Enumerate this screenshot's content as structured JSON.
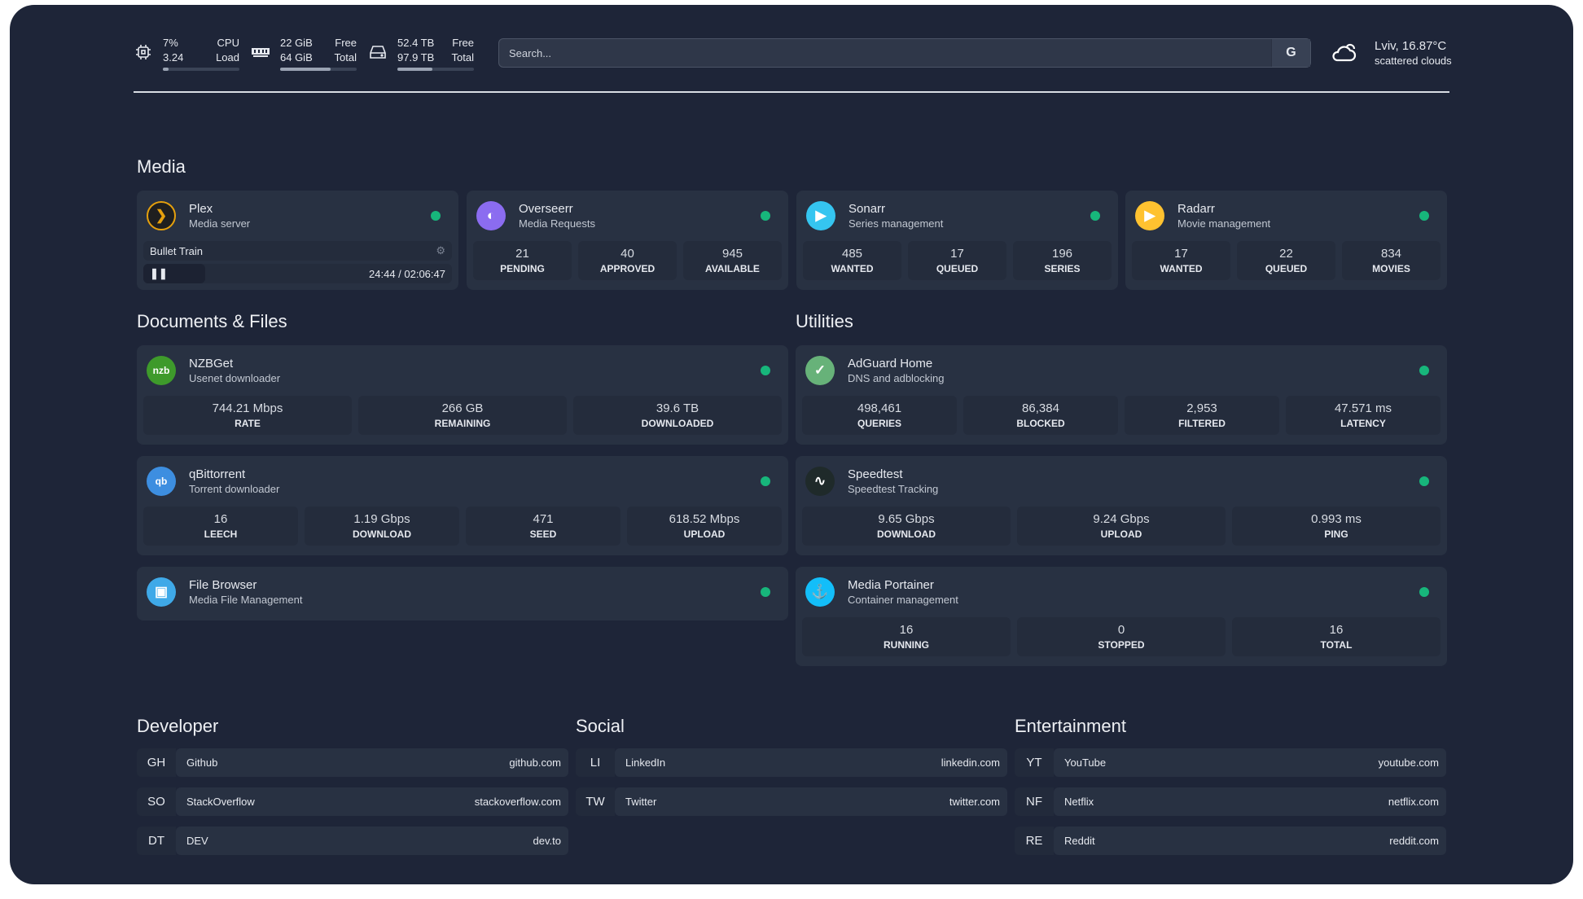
{
  "top": {
    "cpu": {
      "icon": "cpu-icon",
      "v1": "7%",
      "l1": "CPU",
      "v2": "3.24",
      "l2": "Load",
      "percent": 7
    },
    "mem": {
      "icon": "memory-icon",
      "v1": "22 GiB",
      "l1": "Free",
      "v2": "64 GiB",
      "l2": "Total",
      "percent": 66
    },
    "disk": {
      "icon": "disk-icon",
      "v1": "52.4 TB",
      "l1": "Free",
      "v2": "97.9 TB",
      "l2": "Total",
      "percent": 46
    },
    "search": {
      "placeholder": "Search...",
      "engine": "G"
    },
    "weather": {
      "icon": "cloud-sun-icon",
      "location": "Lviv, 16.87°C",
      "condition": "scattered clouds"
    }
  },
  "sections": {
    "media": "Media",
    "docs": "Documents & Files",
    "utilities": "Utilities",
    "developer": "Developer",
    "social": "Social",
    "entertainment": "Entertainment"
  },
  "plex": {
    "name": "Plex",
    "desc": "Media server",
    "icon": "plex-icon",
    "color": "#e5a00d",
    "now_playing": "Bullet Train",
    "time": "24:44 / 02:06:47",
    "progress_percent": 20
  },
  "media": [
    {
      "name": "Overseerr",
      "desc": "Media Requests",
      "icon": "overseerr-icon",
      "color": "#8b6cf0",
      "glyph": "◐",
      "stats": [
        {
          "v": "21",
          "l": "PENDING"
        },
        {
          "v": "40",
          "l": "APPROVED"
        },
        {
          "v": "945",
          "l": "AVAILABLE"
        }
      ]
    },
    {
      "name": "Sonarr",
      "desc": "Series management",
      "icon": "sonarr-icon",
      "color": "#35c5f0",
      "glyph": "▶",
      "stats": [
        {
          "v": "485",
          "l": "WANTED"
        },
        {
          "v": "17",
          "l": "QUEUED"
        },
        {
          "v": "196",
          "l": "SERIES"
        }
      ]
    },
    {
      "name": "Radarr",
      "desc": "Movie management",
      "icon": "radarr-icon",
      "color": "#ffc230",
      "glyph": "▶",
      "stats": [
        {
          "v": "17",
          "l": "WANTED"
        },
        {
          "v": "22",
          "l": "QUEUED"
        },
        {
          "v": "834",
          "l": "MOVIES"
        }
      ]
    }
  ],
  "docs": [
    {
      "name": "NZBGet",
      "desc": "Usenet downloader",
      "icon": "nzbget-icon",
      "color": "#3e9a2b",
      "glyph": "nzb",
      "stats": [
        {
          "v": "744.21 Mbps",
          "l": "RATE"
        },
        {
          "v": "266 GB",
          "l": "REMAINING"
        },
        {
          "v": "39.6 TB",
          "l": "DOWNLOADED"
        }
      ]
    },
    {
      "name": "qBittorrent",
      "desc": "Torrent downloader",
      "icon": "qbittorrent-icon",
      "color": "#3d8ee0",
      "glyph": "qb",
      "stats": [
        {
          "v": "16",
          "l": "LEECH"
        },
        {
          "v": "1.19 Gbps",
          "l": "DOWNLOAD"
        },
        {
          "v": "471",
          "l": "SEED"
        },
        {
          "v": "618.52 Mbps",
          "l": "UPLOAD"
        }
      ]
    },
    {
      "name": "File Browser",
      "desc": "Media File Management",
      "icon": "file-browser-icon",
      "color": "#3fa9e8",
      "glyph": "▣",
      "stats": []
    }
  ],
  "utilities": [
    {
      "name": "AdGuard Home",
      "desc": "DNS and adblocking",
      "icon": "adguard-icon",
      "color": "#67b279",
      "glyph": "✓",
      "stats": [
        {
          "v": "498,461",
          "l": "QUERIES"
        },
        {
          "v": "86,384",
          "l": "BLOCKED"
        },
        {
          "v": "2,953",
          "l": "FILTERED"
        },
        {
          "v": "47.571 ms",
          "l": "LATENCY"
        }
      ]
    },
    {
      "name": "Speedtest",
      "desc": "Speedtest Tracking",
      "icon": "speedtest-icon",
      "color": "#1f2a2a",
      "glyph": "∿",
      "stats": [
        {
          "v": "9.65 Gbps",
          "l": "DOWNLOAD"
        },
        {
          "v": "9.24 Gbps",
          "l": "UPLOAD"
        },
        {
          "v": "0.993 ms",
          "l": "PING"
        }
      ]
    },
    {
      "name": "Media Portainer",
      "desc": "Container management",
      "icon": "portainer-icon",
      "color": "#13bef9",
      "glyph": "⚓",
      "stats": [
        {
          "v": "16",
          "l": "RUNNING"
        },
        {
          "v": "0",
          "l": "STOPPED"
        },
        {
          "v": "16",
          "l": "TOTAL"
        }
      ]
    }
  ],
  "bookmarks": {
    "developer": [
      {
        "abbr": "GH",
        "name": "Github",
        "url": "github.com"
      },
      {
        "abbr": "SO",
        "name": "StackOverflow",
        "url": "stackoverflow.com"
      },
      {
        "abbr": "DT",
        "name": "DEV",
        "url": "dev.to"
      }
    ],
    "social": [
      {
        "abbr": "LI",
        "name": "LinkedIn",
        "url": "linkedin.com"
      },
      {
        "abbr": "TW",
        "name": "Twitter",
        "url": "twitter.com"
      }
    ],
    "entertainment": [
      {
        "abbr": "YT",
        "name": "YouTube",
        "url": "youtube.com"
      },
      {
        "abbr": "NF",
        "name": "Netflix",
        "url": "netflix.com"
      },
      {
        "abbr": "RE",
        "name": "Reddit",
        "url": "reddit.com"
      }
    ]
  },
  "colors": {
    "background": "#1e2538",
    "card": "#283142",
    "status_ok": "#17b67b"
  }
}
